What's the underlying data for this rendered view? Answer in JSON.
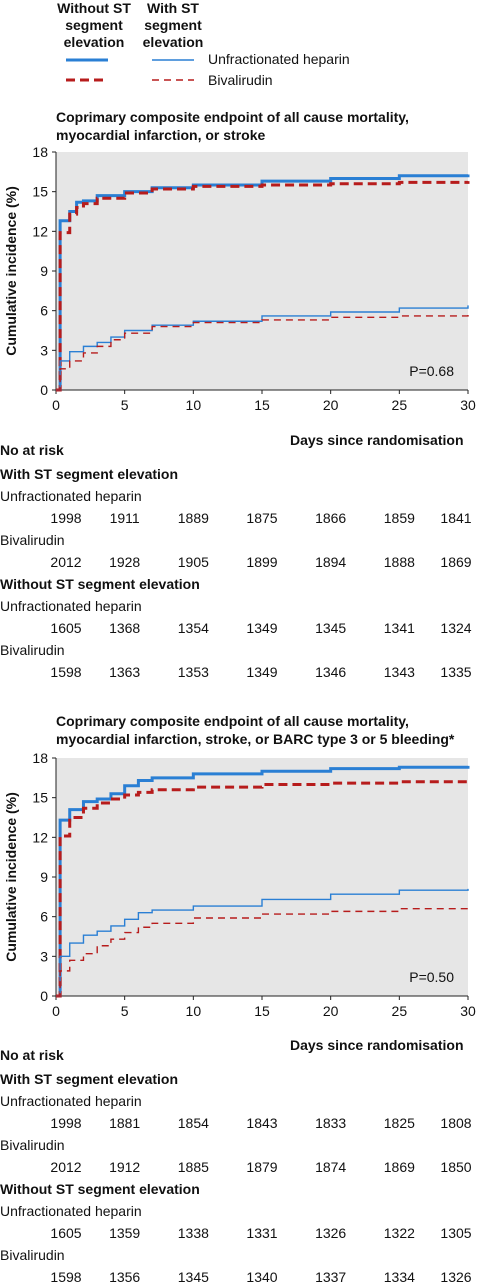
{
  "legend": {
    "without_header": "Without ST segment elevation",
    "with_header": "With ST segment elevation",
    "items": [
      {
        "label": "Unfractionated heparin",
        "color": "#2a7fd4"
      },
      {
        "label": "Bivalirudin",
        "color": "#b71c1c"
      }
    ]
  },
  "chart_data": [
    {
      "type": "line",
      "title": "Coprimary composite endpoint of all cause mortality, myocardial infarction, or stroke",
      "xlabel": "Days since randomisation",
      "ylabel": "Cumulative incidence (%)",
      "xlim": [
        0,
        30
      ],
      "ylim": [
        0,
        18
      ],
      "xticks": [
        0,
        5,
        10,
        15,
        20,
        25,
        30
      ],
      "yticks": [
        0,
        3,
        6,
        9,
        12,
        15,
        18
      ],
      "grid": false,
      "annotation": "P=0.68",
      "series": [
        {
          "group": "without-st",
          "drug": "heparin",
          "x": [
            0,
            0.3,
            1,
            1.5,
            2,
            3,
            5,
            7,
            10,
            15,
            20,
            25,
            30
          ],
          "y": [
            0,
            12.8,
            13.5,
            14.2,
            14.3,
            14.7,
            15.0,
            15.3,
            15.5,
            15.8,
            16.0,
            16.2,
            16.3
          ]
        },
        {
          "group": "without-st",
          "drug": "bivalirudin",
          "x": [
            0,
            0.3,
            1,
            1.5,
            2,
            3,
            5,
            7,
            10,
            15,
            20,
            25,
            30
          ],
          "y": [
            0,
            11.9,
            13.3,
            13.8,
            14.1,
            14.5,
            14.9,
            15.2,
            15.4,
            15.5,
            15.6,
            15.7,
            15.8
          ]
        },
        {
          "group": "with-st",
          "drug": "heparin",
          "x": [
            0,
            0.3,
            1,
            2,
            3,
            4,
            5,
            7,
            10,
            15,
            20,
            25,
            30
          ],
          "y": [
            0,
            2.2,
            2.9,
            3.3,
            3.6,
            4.0,
            4.5,
            4.9,
            5.2,
            5.6,
            5.9,
            6.2,
            6.4
          ]
        },
        {
          "group": "with-st",
          "drug": "bivalirudin",
          "x": [
            0,
            0.3,
            1,
            2,
            3,
            4,
            5,
            7,
            10,
            15,
            20,
            25,
            30
          ],
          "y": [
            0,
            1.6,
            2.2,
            2.8,
            3.3,
            3.8,
            4.3,
            4.8,
            5.1,
            5.3,
            5.5,
            5.6,
            5.8
          ]
        }
      ],
      "risk_table": {
        "title": "No at risk",
        "groups": [
          {
            "label": "With ST segment elevation",
            "rows": [
              {
                "label": "Unfractionated heparin",
                "values": [
                  1998,
                  1911,
                  1889,
                  1875,
                  1866,
                  1859,
                  1841
                ]
              },
              {
                "label": "Bivalirudin",
                "values": [
                  2012,
                  1928,
                  1905,
                  1899,
                  1894,
                  1888,
                  1869
                ]
              }
            ]
          },
          {
            "label": "Without ST segment elevation",
            "rows": [
              {
                "label": "Unfractionated heparin",
                "values": [
                  1605,
                  1368,
                  1354,
                  1349,
                  1345,
                  1341,
                  1324
                ]
              },
              {
                "label": "Bivalirudin",
                "values": [
                  1598,
                  1363,
                  1353,
                  1349,
                  1346,
                  1343,
                  1335
                ]
              }
            ]
          }
        ]
      }
    },
    {
      "type": "line",
      "title": "Coprimary composite endpoint of all cause mortality, myocardial infarction, stroke, or BARC type 3 or 5 bleeding*",
      "xlabel": "Days since randomisation",
      "ylabel": "Cumulative incidence (%)",
      "xlim": [
        0,
        30
      ],
      "ylim": [
        0,
        18
      ],
      "xticks": [
        0,
        5,
        10,
        15,
        20,
        25,
        30
      ],
      "yticks": [
        0,
        3,
        6,
        9,
        12,
        15,
        18
      ],
      "grid": false,
      "annotation": "P=0.50",
      "series": [
        {
          "group": "without-st",
          "drug": "heparin",
          "x": [
            0,
            0.3,
            1,
            2,
            3,
            4,
            5,
            6,
            7,
            10,
            15,
            20,
            25,
            30
          ],
          "y": [
            0,
            13.3,
            14.1,
            14.7,
            14.9,
            15.3,
            15.9,
            16.3,
            16.5,
            16.8,
            17.0,
            17.2,
            17.3,
            17.4
          ]
        },
        {
          "group": "without-st",
          "drug": "bivalirudin",
          "x": [
            0,
            0.3,
            1,
            2,
            3,
            4,
            5,
            6,
            7,
            10,
            15,
            20,
            25,
            30
          ],
          "y": [
            0,
            12.1,
            13.5,
            14.2,
            14.6,
            14.9,
            15.2,
            15.4,
            15.6,
            15.8,
            16.0,
            16.1,
            16.2,
            16.3
          ]
        },
        {
          "group": "with-st",
          "drug": "heparin",
          "x": [
            0,
            0.3,
            1,
            2,
            3,
            4,
            5,
            6,
            7,
            10,
            15,
            20,
            25,
            30
          ],
          "y": [
            0,
            3.0,
            4.0,
            4.6,
            4.9,
            5.3,
            5.8,
            6.3,
            6.5,
            6.8,
            7.3,
            7.7,
            8.0,
            8.1
          ]
        },
        {
          "group": "with-st",
          "drug": "bivalirudin",
          "x": [
            0,
            0.3,
            1,
            2,
            3,
            4,
            5,
            6,
            7,
            10,
            15,
            20,
            25,
            30
          ],
          "y": [
            0,
            1.9,
            2.7,
            3.2,
            3.8,
            4.3,
            4.8,
            5.2,
            5.5,
            5.9,
            6.2,
            6.4,
            6.6,
            6.8
          ]
        }
      ],
      "risk_table": {
        "title": "No at risk",
        "groups": [
          {
            "label": "With ST segment elevation",
            "rows": [
              {
                "label": "Unfractionated heparin",
                "values": [
                  1998,
                  1881,
                  1854,
                  1843,
                  1833,
                  1825,
                  1808
                ]
              },
              {
                "label": "Bivalirudin",
                "values": [
                  2012,
                  1912,
                  1885,
                  1879,
                  1874,
                  1869,
                  1850
                ]
              }
            ]
          },
          {
            "label": "Without ST segment elevation",
            "rows": [
              {
                "label": "Unfractionated heparin",
                "values": [
                  1605,
                  1359,
                  1338,
                  1331,
                  1326,
                  1322,
                  1305
                ]
              },
              {
                "label": "Bivalirudin",
                "values": [
                  1598,
                  1356,
                  1345,
                  1340,
                  1337,
                  1334,
                  1326
                ]
              }
            ]
          }
        ]
      }
    }
  ]
}
